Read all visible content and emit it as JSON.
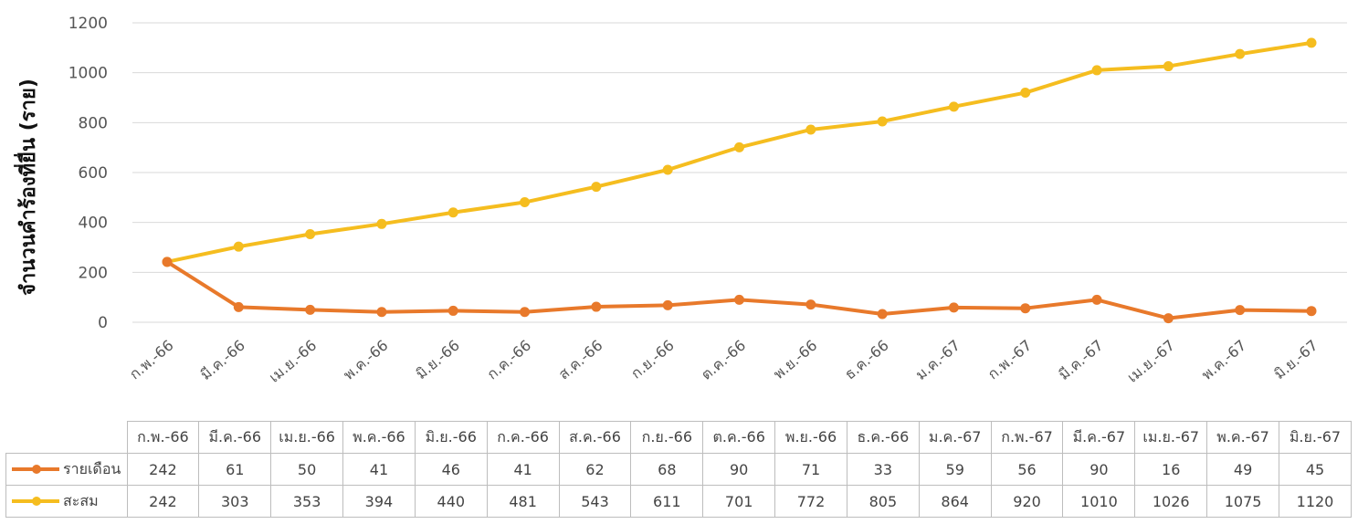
{
  "chart_data": {
    "type": "line",
    "title": "",
    "ylabel": "จำนวนคำร้องที่ยื่น (ราย)",
    "xlabel": "",
    "ylim": [
      0,
      1200
    ],
    "yticks": [
      0,
      200,
      400,
      600,
      800,
      1000,
      1200
    ],
    "grid": true,
    "legend": "table-bottom",
    "categories": [
      "ก.พ.-66",
      "มี.ค.-66",
      "เม.ย.-66",
      "พ.ค.-66",
      "มิ.ย.-66",
      "ก.ค.-66",
      "ส.ค.-66",
      "ก.ย.-66",
      "ต.ค.-66",
      "พ.ย.-66",
      "ธ.ค.-66",
      "ม.ค.-67",
      "ก.พ.-67",
      "มี.ค.-67",
      "เม.ย.-67",
      "พ.ค.-67",
      "มิ.ย.-67"
    ],
    "series": [
      {
        "name": "รายเดือน",
        "color": "#e8792b",
        "values": [
          242,
          61,
          50,
          41,
          46,
          41,
          62,
          68,
          90,
          71,
          33,
          59,
          56,
          90,
          16,
          49,
          45
        ]
      },
      {
        "name": "สะสม",
        "color": "#f5bd1f",
        "values": [
          242,
          303,
          353,
          394,
          440,
          481,
          543,
          611,
          701,
          772,
          805,
          864,
          920,
          1010,
          1026,
          1075,
          1120
        ]
      }
    ]
  }
}
